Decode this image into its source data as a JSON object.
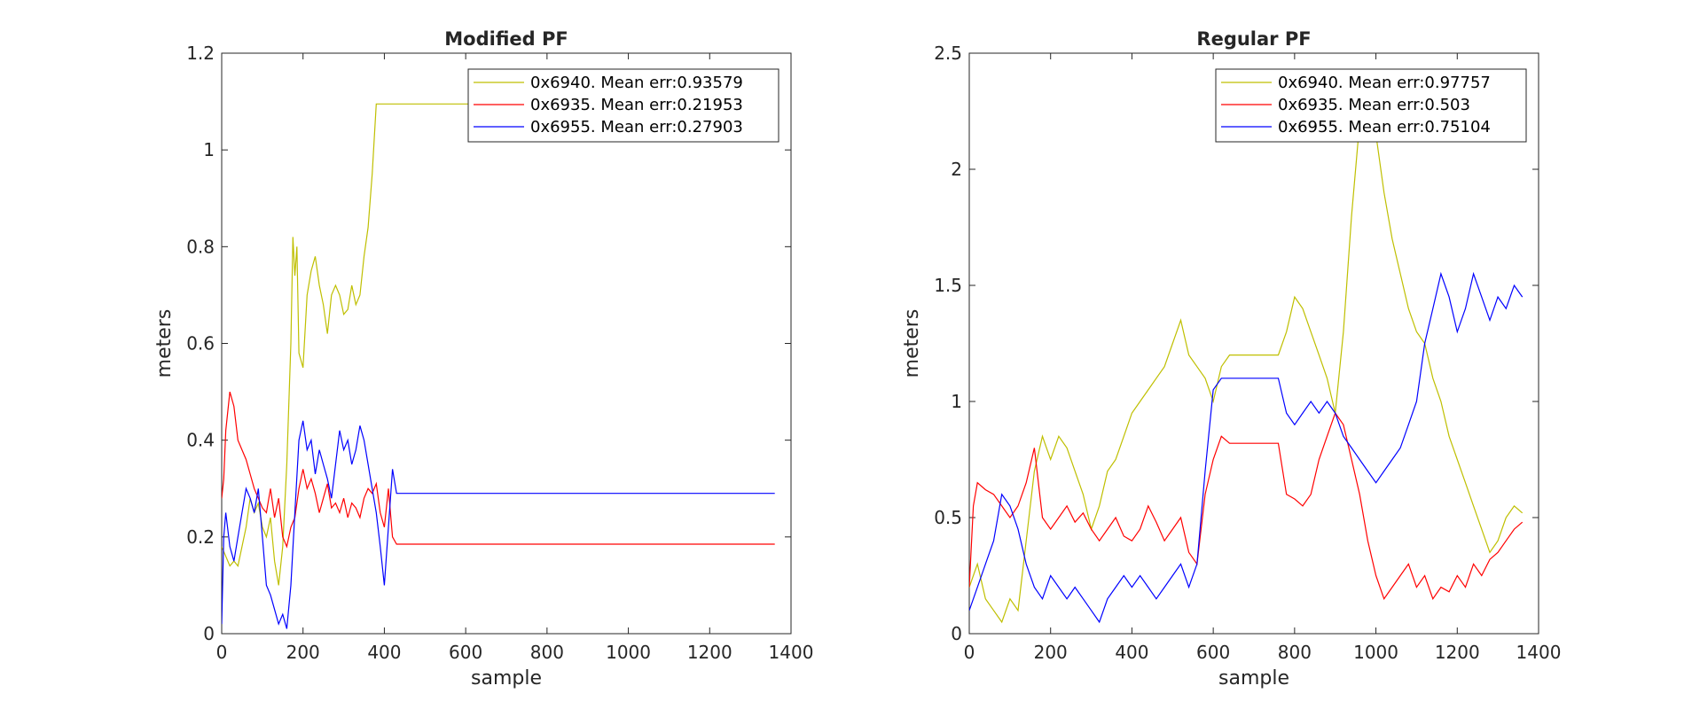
{
  "chart_data": [
    {
      "type": "line",
      "title": "Modified PF",
      "xlabel": "sample",
      "ylabel": "meters",
      "xlim": [
        0,
        1400
      ],
      "ylim": [
        0,
        1.2
      ],
      "xticks": [
        0,
        200,
        400,
        600,
        800,
        1000,
        1200,
        1400
      ],
      "yticks": [
        0,
        0.2,
        0.4,
        0.6,
        0.8,
        1,
        1.2
      ],
      "xtick_labels": [
        "0",
        "200",
        "400",
        "600",
        "800",
        "1000",
        "1200",
        "1400"
      ],
      "ytick_labels": [
        "0",
        "0.2",
        "0.4",
        "0.6",
        "0.8",
        "1",
        "1.2"
      ],
      "legend_position": "top-right",
      "grid": false,
      "series": [
        {
          "name": "0x6940. Mean err:0.93579",
          "color": "#bfbf00",
          "x": [
            0,
            10,
            20,
            30,
            40,
            50,
            60,
            70,
            80,
            90,
            100,
            110,
            120,
            130,
            140,
            150,
            160,
            170,
            175,
            180,
            185,
            190,
            200,
            210,
            220,
            230,
            240,
            250,
            260,
            270,
            280,
            290,
            300,
            310,
            320,
            330,
            340,
            350,
            360,
            370,
            380,
            1360
          ],
          "y": [
            0.18,
            0.16,
            0.14,
            0.15,
            0.14,
            0.18,
            0.22,
            0.28,
            0.25,
            0.27,
            0.22,
            0.2,
            0.24,
            0.15,
            0.1,
            0.18,
            0.35,
            0.6,
            0.82,
            0.74,
            0.8,
            0.58,
            0.55,
            0.7,
            0.75,
            0.78,
            0.72,
            0.68,
            0.62,
            0.7,
            0.72,
            0.7,
            0.66,
            0.67,
            0.72,
            0.68,
            0.7,
            0.78,
            0.84,
            0.95,
            1.095,
            1.095
          ]
        },
        {
          "name": "0x6935. Mean err:0.21953",
          "color": "#ff0000",
          "x": [
            0,
            5,
            10,
            20,
            30,
            40,
            50,
            60,
            70,
            80,
            90,
            100,
            110,
            120,
            130,
            140,
            150,
            160,
            170,
            180,
            190,
            200,
            210,
            220,
            230,
            240,
            250,
            260,
            270,
            280,
            290,
            300,
            310,
            320,
            330,
            340,
            350,
            360,
            370,
            380,
            390,
            400,
            410,
            420,
            430,
            1360
          ],
          "y": [
            0.28,
            0.32,
            0.42,
            0.5,
            0.47,
            0.4,
            0.38,
            0.36,
            0.33,
            0.3,
            0.28,
            0.26,
            0.25,
            0.3,
            0.24,
            0.28,
            0.2,
            0.18,
            0.22,
            0.24,
            0.3,
            0.34,
            0.3,
            0.32,
            0.29,
            0.25,
            0.28,
            0.31,
            0.26,
            0.27,
            0.25,
            0.28,
            0.24,
            0.27,
            0.26,
            0.24,
            0.28,
            0.3,
            0.29,
            0.31,
            0.25,
            0.22,
            0.3,
            0.2,
            0.185,
            0.185
          ]
        },
        {
          "name": "0x6955. Mean err:0.27903",
          "color": "#0000ff",
          "x": [
            0,
            5,
            10,
            20,
            30,
            40,
            50,
            60,
            70,
            80,
            90,
            100,
            110,
            120,
            130,
            140,
            150,
            160,
            170,
            180,
            190,
            200,
            210,
            220,
            230,
            240,
            250,
            260,
            270,
            280,
            290,
            300,
            310,
            320,
            330,
            340,
            350,
            360,
            370,
            380,
            390,
            400,
            410,
            420,
            430,
            1360
          ],
          "y": [
            0.02,
            0.2,
            0.25,
            0.18,
            0.15,
            0.2,
            0.25,
            0.3,
            0.28,
            0.25,
            0.3,
            0.2,
            0.1,
            0.08,
            0.05,
            0.02,
            0.04,
            0.01,
            0.1,
            0.25,
            0.4,
            0.44,
            0.38,
            0.4,
            0.33,
            0.38,
            0.35,
            0.32,
            0.28,
            0.35,
            0.42,
            0.38,
            0.4,
            0.35,
            0.38,
            0.43,
            0.4,
            0.35,
            0.3,
            0.25,
            0.18,
            0.1,
            0.22,
            0.34,
            0.29,
            0.29
          ]
        }
      ]
    },
    {
      "type": "line",
      "title": "Regular PF",
      "xlabel": "sample",
      "ylabel": "meters",
      "xlim": [
        0,
        1400
      ],
      "ylim": [
        0,
        2.5
      ],
      "xticks": [
        0,
        200,
        400,
        600,
        800,
        1000,
        1200,
        1400
      ],
      "yticks": [
        0,
        0.5,
        1,
        1.5,
        2,
        2.5
      ],
      "xtick_labels": [
        "0",
        "200",
        "400",
        "600",
        "800",
        "1000",
        "1200",
        "1400"
      ],
      "ytick_labels": [
        "0",
        "0.5",
        "1",
        "1.5",
        "2",
        "2.5"
      ],
      "legend_position": "top-right",
      "grid": false,
      "series": [
        {
          "name": "0x6940. Mean err:0.97757",
          "color": "#bfbf00",
          "x": [
            0,
            20,
            40,
            60,
            80,
            100,
            120,
            140,
            160,
            180,
            200,
            220,
            240,
            260,
            280,
            300,
            320,
            340,
            360,
            380,
            400,
            420,
            440,
            460,
            480,
            500,
            520,
            540,
            560,
            580,
            600,
            620,
            640,
            760,
            780,
            800,
            820,
            840,
            860,
            880,
            900,
            920,
            940,
            960,
            980,
            1000,
            1020,
            1040,
            1060,
            1080,
            1100,
            1120,
            1140,
            1160,
            1180,
            1200,
            1220,
            1240,
            1260,
            1280,
            1300,
            1320,
            1340,
            1360
          ],
          "y": [
            0.2,
            0.3,
            0.15,
            0.1,
            0.05,
            0.15,
            0.1,
            0.4,
            0.7,
            0.85,
            0.75,
            0.85,
            0.8,
            0.7,
            0.6,
            0.45,
            0.55,
            0.7,
            0.75,
            0.85,
            0.95,
            1.0,
            1.05,
            1.1,
            1.15,
            1.25,
            1.35,
            1.2,
            1.15,
            1.1,
            1.0,
            1.15,
            1.2,
            1.2,
            1.3,
            1.45,
            1.4,
            1.3,
            1.2,
            1.1,
            0.95,
            1.3,
            1.8,
            2.2,
            2.35,
            2.15,
            1.9,
            1.7,
            1.55,
            1.4,
            1.3,
            1.25,
            1.1,
            1.0,
            0.85,
            0.75,
            0.65,
            0.55,
            0.45,
            0.35,
            0.4,
            0.5,
            0.55,
            0.52
          ]
        },
        {
          "name": "0x6935. Mean err:0.503",
          "color": "#ff0000",
          "x": [
            0,
            10,
            20,
            40,
            60,
            80,
            100,
            120,
            140,
            160,
            180,
            200,
            220,
            240,
            260,
            280,
            300,
            320,
            340,
            360,
            380,
            400,
            420,
            440,
            460,
            480,
            500,
            520,
            540,
            560,
            580,
            600,
            620,
            640,
            760,
            780,
            800,
            820,
            840,
            860,
            880,
            900,
            920,
            940,
            960,
            980,
            1000,
            1020,
            1040,
            1060,
            1080,
            1100,
            1120,
            1140,
            1160,
            1180,
            1200,
            1220,
            1240,
            1260,
            1280,
            1300,
            1320,
            1340,
            1360
          ],
          "y": [
            0.2,
            0.55,
            0.65,
            0.62,
            0.6,
            0.55,
            0.5,
            0.55,
            0.65,
            0.8,
            0.5,
            0.45,
            0.5,
            0.55,
            0.48,
            0.52,
            0.45,
            0.4,
            0.45,
            0.5,
            0.42,
            0.4,
            0.45,
            0.55,
            0.48,
            0.4,
            0.45,
            0.5,
            0.35,
            0.3,
            0.6,
            0.75,
            0.85,
            0.82,
            0.82,
            0.6,
            0.58,
            0.55,
            0.6,
            0.75,
            0.85,
            0.95,
            0.9,
            0.75,
            0.6,
            0.4,
            0.25,
            0.15,
            0.2,
            0.25,
            0.3,
            0.2,
            0.25,
            0.15,
            0.2,
            0.18,
            0.25,
            0.2,
            0.3,
            0.25,
            0.32,
            0.35,
            0.4,
            0.45,
            0.48
          ]
        },
        {
          "name": "0x6955. Mean err:0.75104",
          "color": "#0000ff",
          "x": [
            0,
            20,
            40,
            60,
            80,
            100,
            120,
            140,
            160,
            180,
            200,
            220,
            240,
            260,
            280,
            300,
            320,
            340,
            360,
            380,
            400,
            420,
            440,
            460,
            480,
            500,
            520,
            540,
            560,
            580,
            600,
            620,
            640,
            760,
            780,
            800,
            820,
            840,
            860,
            880,
            900,
            920,
            940,
            960,
            980,
            1000,
            1020,
            1040,
            1060,
            1080,
            1100,
            1120,
            1140,
            1160,
            1180,
            1200,
            1220,
            1240,
            1260,
            1280,
            1300,
            1320,
            1340,
            1360
          ],
          "y": [
            0.1,
            0.2,
            0.3,
            0.4,
            0.6,
            0.55,
            0.45,
            0.3,
            0.2,
            0.15,
            0.25,
            0.2,
            0.15,
            0.2,
            0.15,
            0.1,
            0.05,
            0.15,
            0.2,
            0.25,
            0.2,
            0.25,
            0.2,
            0.15,
            0.2,
            0.25,
            0.3,
            0.2,
            0.3,
            0.7,
            1.05,
            1.1,
            1.1,
            1.1,
            0.95,
            0.9,
            0.95,
            1.0,
            0.95,
            1.0,
            0.95,
            0.85,
            0.8,
            0.75,
            0.7,
            0.65,
            0.7,
            0.75,
            0.8,
            0.9,
            1.0,
            1.25,
            1.4,
            1.55,
            1.45,
            1.3,
            1.4,
            1.55,
            1.45,
            1.35,
            1.45,
            1.4,
            1.5,
            1.45
          ]
        }
      ]
    }
  ]
}
